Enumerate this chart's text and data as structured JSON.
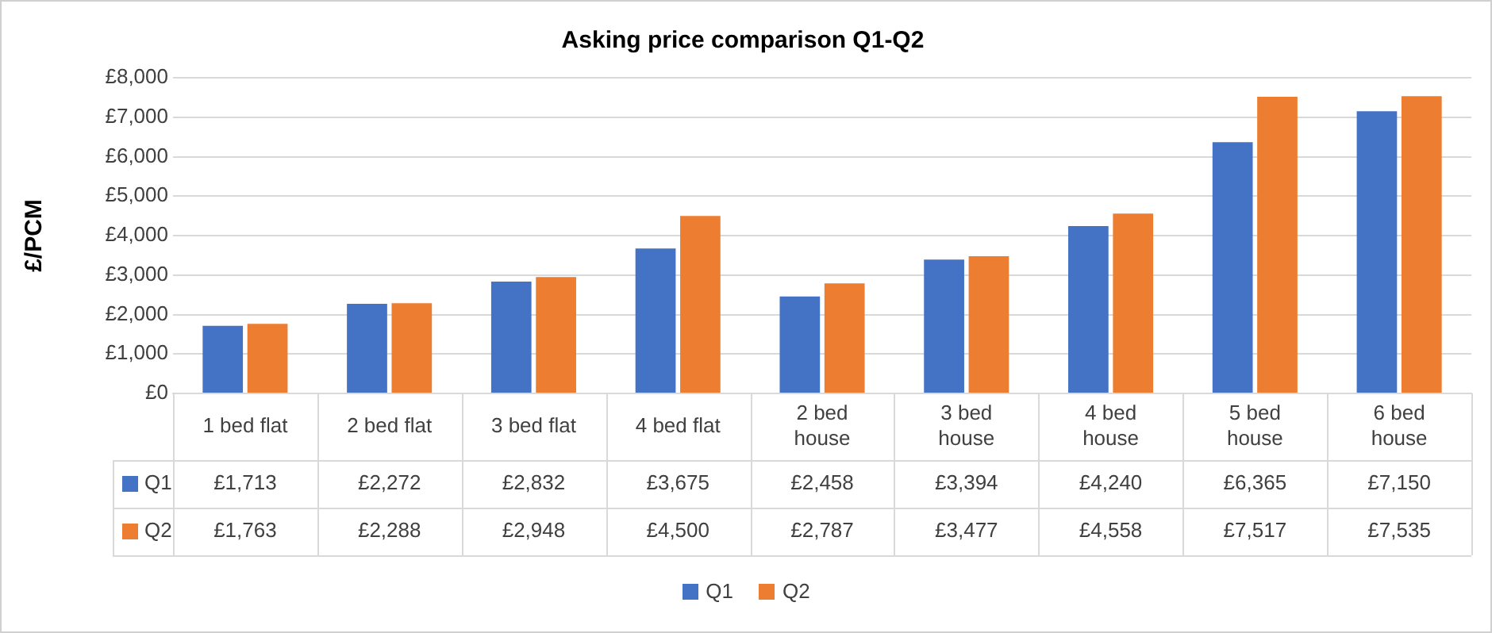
{
  "chart_data": {
    "type": "bar",
    "title": "Asking price comparison Q1-Q2",
    "ylabel": "£/PCM",
    "categories": [
      "1 bed flat",
      "2 bed flat",
      "3 bed flat",
      "4 bed flat",
      "2 bed house",
      "3 bed house",
      "4 bed house",
      "5 bed house",
      "6 bed house"
    ],
    "series": [
      {
        "name": "Q1",
        "color": "#4472c4",
        "values": [
          1713,
          2272,
          2832,
          3675,
          2458,
          3394,
          4240,
          6365,
          7150
        ],
        "value_labels": [
          "£1,713",
          "£2,272",
          "£2,832",
          "£3,675",
          "£2,458",
          "£3,394",
          "£4,240",
          "£6,365",
          "£7,150"
        ]
      },
      {
        "name": "Q2",
        "color": "#ed7d31",
        "values": [
          1763,
          2288,
          2948,
          4500,
          2787,
          3477,
          4558,
          7517,
          7535
        ],
        "value_labels": [
          "£1,763",
          "£2,288",
          "£2,948",
          "£4,500",
          "£2,787",
          "£3,477",
          "£4,558",
          "£7,517",
          "£7,535"
        ]
      }
    ],
    "ylim": [
      0,
      8000
    ],
    "yticks": [
      {
        "value": 0,
        "label": "£0"
      },
      {
        "value": 1000,
        "label": "£1,000"
      },
      {
        "value": 2000,
        "label": "£2,000"
      },
      {
        "value": 3000,
        "label": "£3,000"
      },
      {
        "value": 4000,
        "label": "£4,000"
      },
      {
        "value": 5000,
        "label": "£5,000"
      },
      {
        "value": 6000,
        "label": "£6,000"
      },
      {
        "value": 7000,
        "label": "£7,000"
      },
      {
        "value": 8000,
        "label": "£8,000"
      }
    ],
    "grid": "y",
    "legend": "bottom"
  }
}
